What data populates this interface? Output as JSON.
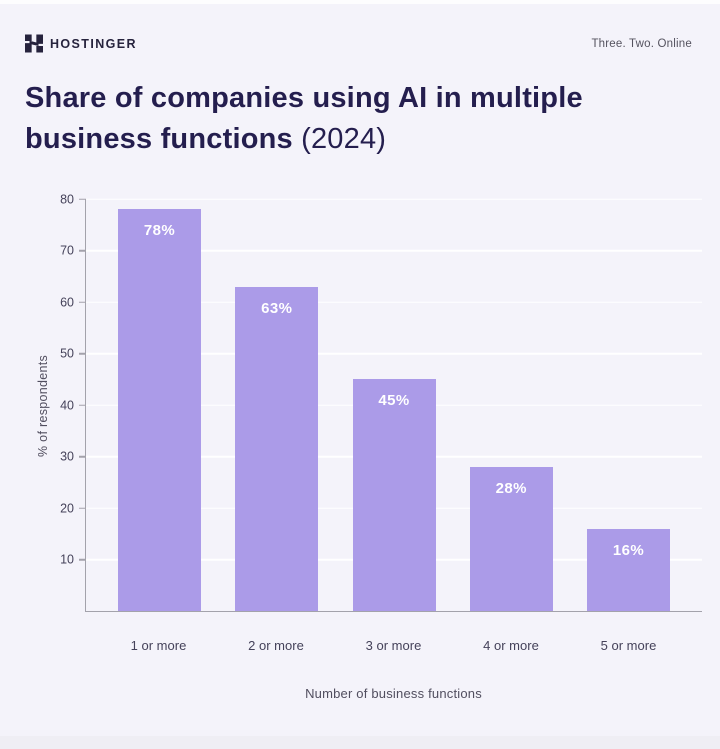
{
  "header": {
    "brand": "HOSTINGER",
    "logo_icon": "hostinger-h-icon",
    "tagline": "Three. Two. Online"
  },
  "title": {
    "line1": "Share of companies using AI in multiple",
    "line2_bold": "business functions",
    "line2_light": " (2024)"
  },
  "chart_data": {
    "type": "bar",
    "title": "Share of companies using AI in multiple business functions (2024)",
    "categories": [
      "1 or more",
      "2 or more",
      "3 or more",
      "4 or more",
      "5 or more"
    ],
    "values": [
      78,
      63,
      45,
      28,
      16
    ],
    "value_labels": [
      "78%",
      "63%",
      "45%",
      "28%",
      "16%"
    ],
    "xlabel": "Number of business functions",
    "ylabel": "% of respondents",
    "ylim": [
      0,
      80
    ],
    "yticks": [
      10,
      20,
      30,
      40,
      50,
      60,
      70,
      80
    ],
    "grid": true,
    "legend": false
  },
  "colors": {
    "background": "#f4f3fa",
    "bar": "#ab9be8",
    "bar_label": "#ffffff",
    "gridline": "#ffffff",
    "axis": "#a3a2ab",
    "tick_label": "#45425a",
    "axis_title": "#514e5f",
    "title_text": "#241e4e",
    "brand_dark": "#26233d",
    "tagline_muted": "#55535f"
  }
}
